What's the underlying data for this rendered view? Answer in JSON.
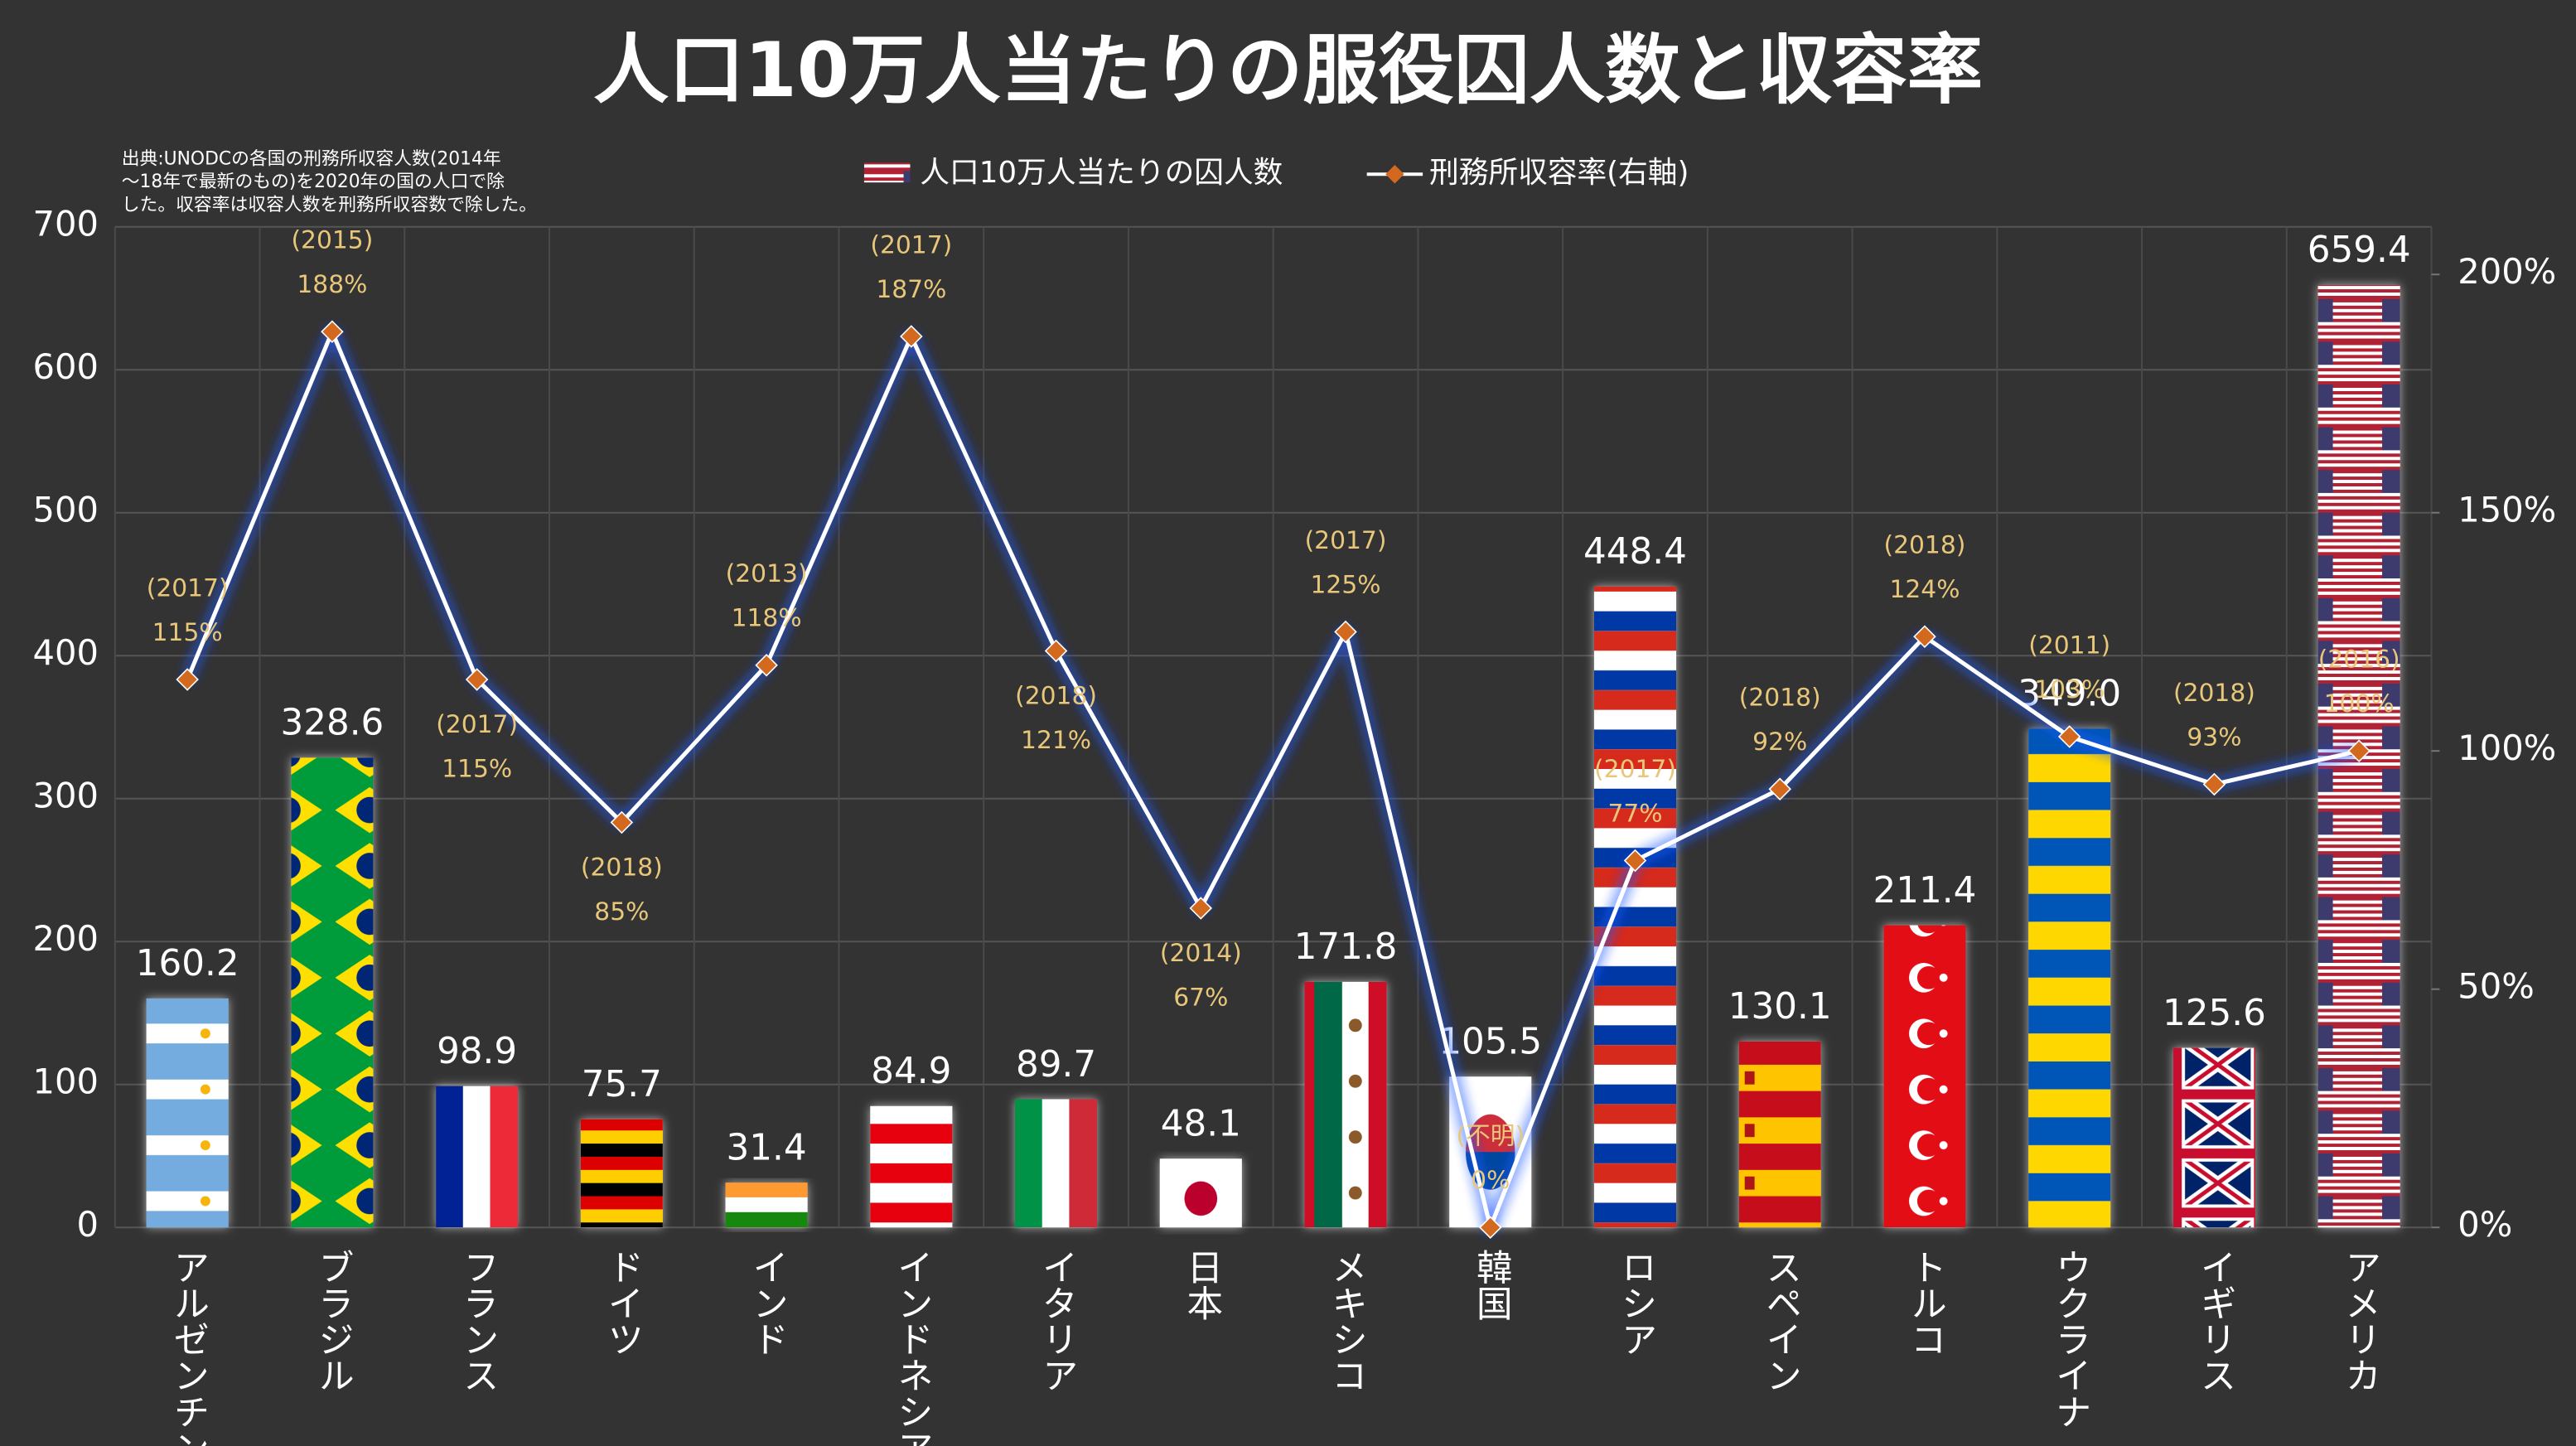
{
  "chart_data": {
    "type": "bar",
    "title": "人口10万人当たりの服役囚人数と収容率",
    "note": [
      "出典:UNODCの各国の刑務所収容人数(2014年",
      "～18年で最新のもの)を2020年の国の人口で除",
      "した。収容率は収容人数を刑務所収容数で除した。"
    ],
    "categories": [
      "アルゼンチン",
      "ブラジル",
      "フランス",
      "ドイツ",
      "インド",
      "インドネシア",
      "イタリア",
      "日本",
      "メキシコ",
      "韓国",
      "ロシア",
      "スペイン",
      "トルコ",
      "ウクライナ",
      "イギリス",
      "アメリカ"
    ],
    "series": [
      {
        "name": "人口10万人当たりの囚人数",
        "type": "bar",
        "color": "#c8102e",
        "values": [
          160.2,
          328.6,
          98.9,
          75.7,
          31.4,
          84.9,
          89.7,
          48.1,
          171.8,
          105.5,
          448.4,
          130.1,
          211.4,
          349.0,
          125.6,
          659.4
        ],
        "value_labels": [
          "160.2",
          "328.6",
          "98.9",
          "75.7",
          "31.4",
          "84.9",
          "89.7",
          "48.1",
          "171.8",
          "105.5",
          "448.4",
          "130.1",
          "211.4",
          "349.0",
          "125.6",
          "659.4"
        ]
      },
      {
        "name": "刑務所収容率(右軸)",
        "type": "line",
        "axis": "y2",
        "color": "#ffffff",
        "marker_color": "#d2691e",
        "values": [
          115,
          188,
          115,
          85,
          118,
          187,
          121,
          67,
          125,
          0,
          77,
          92,
          124,
          103,
          93,
          100
        ],
        "value_labels": [
          "115%",
          "188%",
          "115%",
          "85%",
          "118%",
          "187%",
          "121%",
          "67%",
          "125%",
          "0%",
          "77%",
          "92%",
          "124%",
          "103%",
          "93%",
          "100%"
        ],
        "years": [
          "(2017)",
          "(2015)",
          "(2017)",
          "(2018)",
          "(2013)",
          "(2017)",
          "(2018)",
          "(2014)",
          "(2017)",
          "(不明)",
          "(2017)",
          "(2018)",
          "(2018)",
          "(2011)",
          "(2018)",
          "(2016)"
        ]
      }
    ],
    "ylim": [
      0,
      700
    ],
    "yticks": [
      0,
      100,
      200,
      300,
      400,
      500,
      600,
      700
    ],
    "y2lim": [
      0,
      210
    ],
    "y2ticks": [
      {
        "value": 0,
        "label": "0%"
      },
      {
        "value": 50,
        "label": "50%"
      },
      {
        "value": 100,
        "label": "100%"
      },
      {
        "value": 150,
        "label": "150%"
      },
      {
        "value": 200,
        "label": "200%"
      }
    ],
    "grid": true,
    "legend": "top"
  }
}
